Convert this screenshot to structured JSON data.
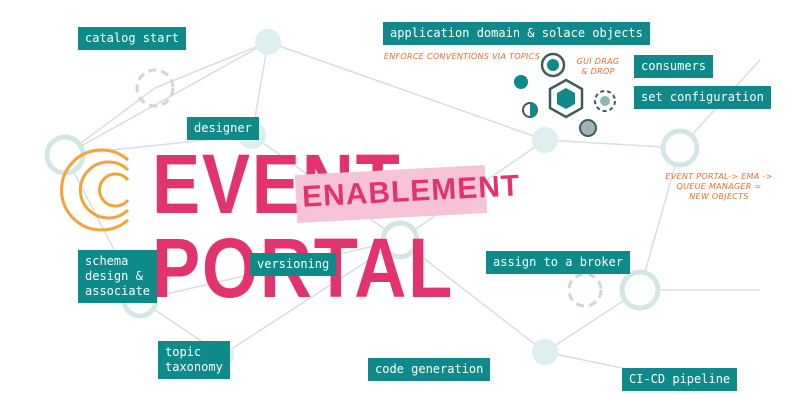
{
  "title": {
    "main": "EVENT PORTAL",
    "banner": "ENABLEMENT"
  },
  "tags": {
    "catalog_start": "catalog start",
    "app_domain": "application domain & solace objects",
    "consumers": "consumers",
    "set_config": "set configuration",
    "designer": "designer",
    "schema": "schema\ndesign &\nassociate",
    "versioning": "versioning",
    "assign_broker": "assign to a broker",
    "topic_taxonomy": "topic\ntaxonomy",
    "code_generation": "code generation",
    "cicd": "CI-CD pipeline"
  },
  "notes": {
    "enforce": "ENFORCE CONVENTIONS VIA TOPICS",
    "gui": "GUI DRAG\n& DROP",
    "ema": "EVENT PORTAL-> EMA ->\nQUEUE MANAGER =\nNEW OBJECTS"
  },
  "colors": {
    "teal": "#0f8a8a",
    "pink": "#e2336f",
    "pink_light": "#f6c4d6",
    "orange": "#f26b2a",
    "node": "#dceeee",
    "line": "#d7dde0"
  }
}
